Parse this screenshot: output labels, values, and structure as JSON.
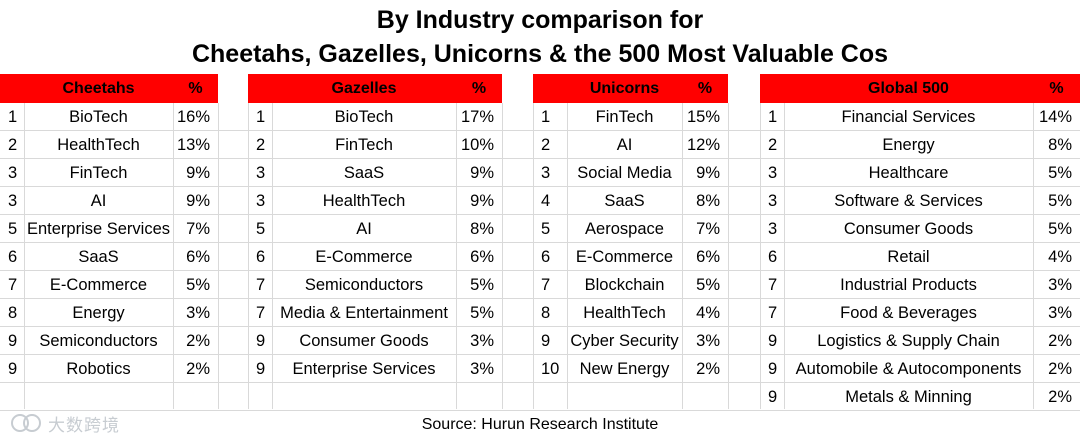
{
  "title_line1": "By Industry comparison for",
  "title_line2": "Cheetahs, Gazelles, Unicorns & the 500 Most Valuable Cos",
  "header_color": "#ff0000",
  "tables": [
    {
      "name": "Cheetahs",
      "pct_header": "%",
      "rows": [
        {
          "rank": "1",
          "industry": "BioTech",
          "pct": "16%"
        },
        {
          "rank": "2",
          "industry": "HealthTech",
          "pct": "13%"
        },
        {
          "rank": "3",
          "industry": "FinTech",
          "pct": "9%"
        },
        {
          "rank": "3",
          "industry": "AI",
          "pct": "9%"
        },
        {
          "rank": "5",
          "industry": "Enterprise Services",
          "pct": "7%"
        },
        {
          "rank": "6",
          "industry": "SaaS",
          "pct": "6%"
        },
        {
          "rank": "7",
          "industry": "E-Commerce",
          "pct": "5%"
        },
        {
          "rank": "8",
          "industry": "Energy",
          "pct": "3%"
        },
        {
          "rank": "9",
          "industry": "Semiconductors",
          "pct": "2%"
        },
        {
          "rank": "9",
          "industry": "Robotics",
          "pct": "2%"
        }
      ]
    },
    {
      "name": "Gazelles",
      "pct_header": "%",
      "rows": [
        {
          "rank": "1",
          "industry": "BioTech",
          "pct": "17%"
        },
        {
          "rank": "2",
          "industry": "FinTech",
          "pct": "10%"
        },
        {
          "rank": "3",
          "industry": "SaaS",
          "pct": "9%"
        },
        {
          "rank": "3",
          "industry": "HealthTech",
          "pct": "9%"
        },
        {
          "rank": "5",
          "industry": "AI",
          "pct": "8%"
        },
        {
          "rank": "6",
          "industry": "E-Commerce",
          "pct": "6%"
        },
        {
          "rank": "7",
          "industry": "Semiconductors",
          "pct": "5%"
        },
        {
          "rank": "7",
          "industry": "Media & Entertainment",
          "pct": "5%"
        },
        {
          "rank": "9",
          "industry": "Consumer Goods",
          "pct": "3%"
        },
        {
          "rank": "9",
          "industry": "Enterprise Services",
          "pct": "3%"
        }
      ]
    },
    {
      "name": "Unicorns",
      "pct_header": "%",
      "rows": [
        {
          "rank": "1",
          "industry": "FinTech",
          "pct": "15%"
        },
        {
          "rank": "2",
          "industry": "AI",
          "pct": "12%"
        },
        {
          "rank": "3",
          "industry": "Social Media",
          "pct": "9%"
        },
        {
          "rank": "4",
          "industry": "SaaS",
          "pct": "8%"
        },
        {
          "rank": "5",
          "industry": "Aerospace",
          "pct": "7%"
        },
        {
          "rank": "6",
          "industry": "E-Commerce",
          "pct": "6%"
        },
        {
          "rank": "7",
          "industry": "Blockchain",
          "pct": "5%"
        },
        {
          "rank": "8",
          "industry": "HealthTech",
          "pct": "4%"
        },
        {
          "rank": "9",
          "industry": "Cyber Security",
          "pct": "3%"
        },
        {
          "rank": "10",
          "industry": "New Energy",
          "pct": "2%"
        }
      ]
    },
    {
      "name": "Global 500",
      "pct_header": "%",
      "rows": [
        {
          "rank": "1",
          "industry": "Financial Services",
          "pct": "14%"
        },
        {
          "rank": "2",
          "industry": "Energy",
          "pct": "8%"
        },
        {
          "rank": "3",
          "industry": "Healthcare",
          "pct": "5%"
        },
        {
          "rank": "3",
          "industry": "Software & Services",
          "pct": "5%"
        },
        {
          "rank": "3",
          "industry": "Consumer Goods",
          "pct": "5%"
        },
        {
          "rank": "6",
          "industry": "Retail",
          "pct": "4%"
        },
        {
          "rank": "7",
          "industry": "Industrial Products",
          "pct": "3%"
        },
        {
          "rank": "7",
          "industry": "Food & Beverages",
          "pct": "3%"
        },
        {
          "rank": "9",
          "industry": "Logistics & Supply Chain",
          "pct": "2%"
        },
        {
          "rank": "9",
          "industry": "Automobile & Autocomponents",
          "pct": "2%"
        },
        {
          "rank": "9",
          "industry": "Metals & Minning",
          "pct": "2%"
        }
      ]
    }
  ],
  "source": "Source: Hurun Research Institute",
  "watermark_text": "大数跨境"
}
